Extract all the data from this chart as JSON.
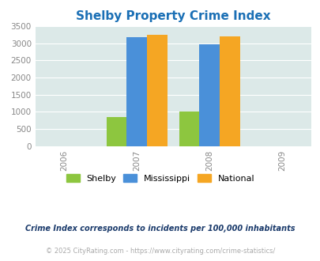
{
  "title": "Shelby Property Crime Index",
  "years": [
    2006,
    2007,
    2008,
    2009
  ],
  "bar_years": [
    2007,
    2008
  ],
  "shelby": [
    850,
    1010
  ],
  "mississippi": [
    3170,
    2960
  ],
  "national": [
    3250,
    3200
  ],
  "colors": {
    "shelby": "#8dc63f",
    "mississippi": "#4a90d9",
    "national": "#f5a623"
  },
  "ylim": [
    0,
    3500
  ],
  "yticks": [
    0,
    500,
    1000,
    1500,
    2000,
    2500,
    3000,
    3500
  ],
  "background_color": "#dce9e8",
  "title_color": "#1a6fb5",
  "title_fontsize": 11,
  "legend_labels": [
    "Shelby",
    "Mississippi",
    "National"
  ],
  "footnote1": "Crime Index corresponds to incidents per 100,000 inhabitants",
  "footnote2": "© 2025 CityRating.com - https://www.cityrating.com/crime-statistics/",
  "bar_width": 0.28
}
